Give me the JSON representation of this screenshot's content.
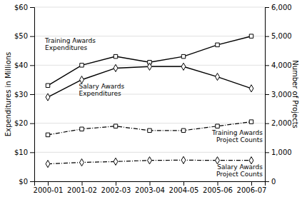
{
  "chart_data": {
    "type": "line",
    "categories": [
      "2000-01",
      "2001-02",
      "2002-03",
      "2003-04",
      "2004-05",
      "2005-06",
      "2006-07"
    ],
    "series": [
      {
        "values": [
          33,
          40,
          43,
          41,
          43,
          47,
          50
        ],
        "color": "#000000",
        "marker": "square",
        "line_style": "solid"
      },
      {
        "values": [
          29,
          35,
          39,
          39.5,
          39.5,
          36,
          32
        ],
        "color": "#000000",
        "marker": "diamond",
        "line_style": "solid"
      },
      {
        "values": [
          1600,
          1800,
          1900,
          1750,
          1750,
          1900,
          2050
        ],
        "color": "#000000",
        "marker": "square",
        "line_style": "dashdot",
        "axis": "y2"
      },
      {
        "values": [
          600,
          650,
          680,
          720,
          730,
          720,
          720
        ],
        "color": "#000000",
        "marker": "diamond",
        "line_style": "dashdot",
        "axis": "y2"
      }
    ],
    "ylim": [
      0,
      60
    ],
    "yticks": [
      {
        "value": 0,
        "label": "$0"
      },
      {
        "value": 10,
        "label": "$10"
      },
      {
        "value": 20,
        "label": "$20"
      },
      {
        "value": 30,
        "label": "$30"
      },
      {
        "value": 40,
        "label": "$40"
      },
      {
        "value": 50,
        "label": "$50"
      },
      {
        "value": 60,
        "label": "$60"
      }
    ],
    "y2lim": [
      0,
      6000
    ],
    "y2ticks": [
      0,
      {
        "value": 1000,
        "label": "1,000"
      },
      {
        "value": 2000,
        "label": "2,000"
      },
      {
        "value": 3000,
        "label": "3,000"
      },
      {
        "value": 4000,
        "label": "4,000"
      },
      {
        "value": 5000,
        "label": "5,000"
      },
      {
        "value": 6000,
        "label": "6,000"
      }
    ],
    "ylabel": "Expenditures in Millions",
    "y2label": "Number of Projects",
    "annotations": [
      "Training Awards\nExpenditures",
      "Salary Awards\nExpenditures",
      "Training Awards\nProject Counts",
      "Salary Awards\nProject Counts"
    ],
    "grid": true
  }
}
